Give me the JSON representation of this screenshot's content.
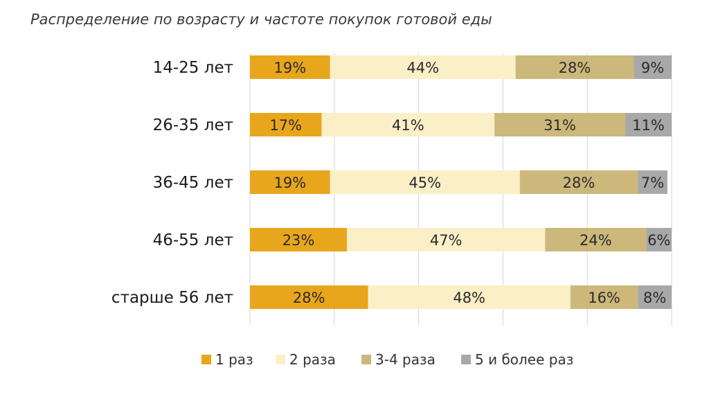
{
  "chart_data": {
    "type": "bar",
    "orientation": "horizontal",
    "stacked": true,
    "title": "Распределение по возрасту и частоте покупок готовой еды",
    "categories": [
      "14-25 лет",
      "26-35 лет",
      "36-45 лет",
      "46-55 лет",
      "старше 56 лет"
    ],
    "series": [
      {
        "name": "1 раз",
        "color": "#E8A61C",
        "values": [
          19,
          17,
          19,
          23,
          28
        ]
      },
      {
        "name": "2 раза",
        "color": "#FBEFC8",
        "values": [
          44,
          41,
          45,
          47,
          48
        ]
      },
      {
        "name": "3-4 раза",
        "color": "#CDB87C",
        "values": [
          28,
          31,
          28,
          24,
          16
        ]
      },
      {
        "name": "5 и более раз",
        "color": "#A8A8A8",
        "values": [
          9,
          11,
          7,
          6,
          8
        ]
      }
    ],
    "value_suffix": "%",
    "xlim": [
      0,
      100
    ],
    "grid": true,
    "legend_position": "bottom"
  }
}
